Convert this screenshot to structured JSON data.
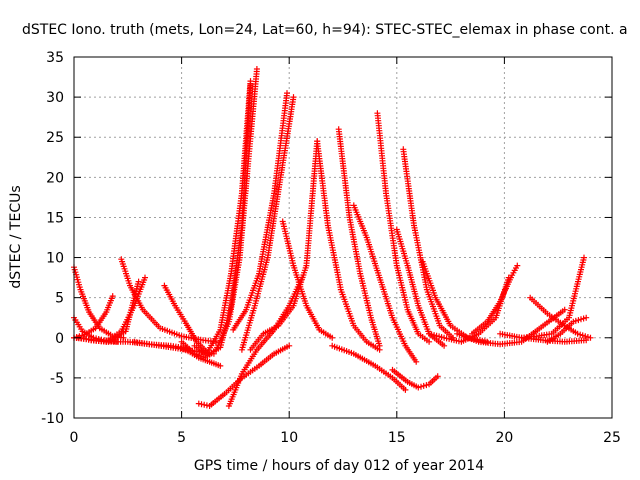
{
  "chart_data": {
    "type": "scatter",
    "title": "dSTEC Iono. truth (mets, Lon=24, Lat=60, h=94): STEC-STEC_elemax in phase cont. a",
    "xlabel": "GPS time / hours of day 012 of year 2014",
    "ylabel": "dSTEC  / TECUs",
    "xlim": [
      0,
      25
    ],
    "ylim": [
      -10,
      35
    ],
    "xticks": [
      "0",
      "5",
      "10",
      "15",
      "20",
      "25"
    ],
    "yticks": [
      "-10",
      "-5",
      "0",
      "5",
      "10",
      "15",
      "20",
      "25",
      "30",
      "35"
    ],
    "grid": true,
    "marker": "+",
    "color": "#ff0000",
    "series": [
      {
        "x": [
          0.0,
          0.3,
          0.7,
          1.2,
          1.8,
          2.3
        ],
        "y": [
          8.8,
          6.0,
          3.2,
          1.2,
          0.2,
          0.0
        ]
      },
      {
        "x": [
          0.0,
          0.4,
          0.9,
          1.4,
          2.0
        ],
        "y": [
          2.5,
          0.8,
          0.0,
          -0.3,
          -0.5
        ]
      },
      {
        "x": [
          0.0,
          0.5,
          1.0,
          1.5,
          1.8
        ],
        "y": [
          0.0,
          0.4,
          1.2,
          3.2,
          5.2
        ]
      },
      {
        "x": [
          0.2,
          0.8,
          1.5,
          2.5,
          3.5,
          4.5,
          5.2
        ],
        "y": [
          0.0,
          -0.3,
          -0.5,
          -0.5,
          -0.8,
          -1.0,
          -1.3
        ]
      },
      {
        "x": [
          0.0,
          0.8,
          1.6,
          2.4,
          3.0
        ],
        "y": [
          0.0,
          -0.2,
          -0.5,
          0.8,
          7.0
        ]
      },
      {
        "x": [
          2.2,
          2.6,
          3.2,
          4.0,
          5.0,
          6.0,
          6.6
        ],
        "y": [
          9.8,
          6.5,
          3.5,
          1.2,
          0.2,
          -0.3,
          -0.5
        ]
      },
      {
        "x": [
          0.8,
          1.5,
          2.2,
          2.8,
          3.3
        ],
        "y": [
          -0.3,
          -0.5,
          0.8,
          4.0,
          7.5
        ]
      },
      {
        "x": [
          2.8,
          3.5,
          4.5,
          5.5,
          6.5
        ],
        "y": [
          -0.5,
          -0.8,
          -1.2,
          -1.6,
          -2.0
        ]
      },
      {
        "x": [
          4.2,
          4.7,
          5.2,
          5.7,
          6.2
        ],
        "y": [
          6.5,
          4.0,
          1.8,
          -0.5,
          -1.8
        ]
      },
      {
        "x": [
          5.0,
          5.4,
          5.8,
          6.3,
          6.8
        ],
        "y": [
          -1.3,
          -1.8,
          -2.5,
          -3.0,
          -3.5
        ]
      },
      {
        "x": [
          5.0,
          5.6,
          6.1,
          6.6,
          7.2,
          7.7,
          8.1,
          8.5
        ],
        "y": [
          -0.5,
          -2.0,
          -2.5,
          -1.5,
          2.0,
          10.0,
          22.0,
          33.5
        ]
      },
      {
        "x": [
          5.6,
          6.2,
          6.8,
          7.3,
          7.8,
          8.2
        ],
        "y": [
          -1.0,
          -2.2,
          -1.2,
          4.0,
          14.0,
          31.5
        ]
      },
      {
        "x": [
          6.2,
          6.8,
          7.3,
          7.8,
          8.2
        ],
        "y": [
          -1.8,
          1.0,
          8.0,
          18.0,
          32.0
        ]
      },
      {
        "x": [
          5.8,
          6.3,
          7.0,
          7.8,
          8.6,
          9.3,
          10.0
        ],
        "y": [
          -8.2,
          -8.5,
          -7.0,
          -5.0,
          -3.5,
          -2.0,
          -1.0
        ]
      },
      {
        "x": [
          7.2,
          7.8,
          8.5,
          9.3,
          10.0,
          10.6
        ],
        "y": [
          -8.5,
          -4.5,
          -1.5,
          1.0,
          4.0,
          7.5
        ]
      },
      {
        "x": [
          7.4,
          8.0,
          8.6,
          9.3,
          9.9
        ],
        "y": [
          1.0,
          3.5,
          8.0,
          18.0,
          30.5
        ]
      },
      {
        "x": [
          7.8,
          8.4,
          9.0,
          9.6,
          10.2
        ],
        "y": [
          -1.5,
          4.0,
          10.0,
          20.0,
          30.0
        ]
      },
      {
        "x": [
          8.2,
          8.8,
          9.5,
          10.2,
          10.8,
          11.3
        ],
        "y": [
          -1.5,
          0.5,
          1.5,
          4.0,
          9.0,
          24.5
        ]
      },
      {
        "x": [
          9.7,
          10.2,
          10.8,
          11.4,
          12.0
        ],
        "y": [
          14.5,
          9.0,
          4.0,
          1.0,
          0.0
        ]
      },
      {
        "x": [
          11.3,
          11.8,
          12.4,
          13.0,
          13.6,
          14.2
        ],
        "y": [
          24.5,
          14.0,
          6.0,
          1.5,
          -0.5,
          -1.5
        ]
      },
      {
        "x": [
          12.3,
          12.8,
          13.3,
          13.8,
          14.2
        ],
        "y": [
          26.0,
          15.0,
          8.0,
          2.5,
          -1.0
        ]
      },
      {
        "x": [
          13.0,
          13.6,
          14.2,
          14.8,
          15.4,
          15.9
        ],
        "y": [
          16.5,
          12.5,
          7.5,
          2.5,
          -1.0,
          -3.0
        ]
      },
      {
        "x": [
          12.0,
          13.0,
          14.0,
          14.8,
          15.4
        ],
        "y": [
          -1.0,
          -2.0,
          -3.5,
          -5.0,
          -6.5
        ]
      },
      {
        "x": [
          14.1,
          14.5,
          15.0,
          15.5,
          16.0,
          16.5
        ],
        "y": [
          28.0,
          18.0,
          9.0,
          3.5,
          0.5,
          -0.5
        ]
      },
      {
        "x": [
          15.0,
          15.5,
          16.0,
          16.5,
          17.2
        ],
        "y": [
          13.5,
          9.0,
          4.0,
          0.5,
          -1.0
        ]
      },
      {
        "x": [
          15.3,
          15.8,
          16.4,
          17.0,
          17.6
        ],
        "y": [
          23.5,
          14.0,
          6.0,
          1.5,
          0.0
        ]
      },
      {
        "x": [
          14.8,
          15.5,
          16.0,
          16.5,
          16.9
        ],
        "y": [
          -4.0,
          -5.5,
          -6.2,
          -5.8,
          -4.8
        ]
      },
      {
        "x": [
          16.2,
          16.8,
          17.5,
          18.3,
          19.2
        ],
        "y": [
          9.5,
          5.0,
          1.5,
          0.0,
          -0.5
        ]
      },
      {
        "x": [
          16.5,
          17.2,
          18.0,
          18.8,
          19.6,
          20.2
        ],
        "y": [
          0.5,
          0.0,
          -0.5,
          0.5,
          2.5,
          7.5
        ]
      },
      {
        "x": [
          17.8,
          18.8,
          19.8,
          20.8,
          21.8,
          22.8
        ],
        "y": [
          0.5,
          -0.5,
          -0.8,
          -0.5,
          1.5,
          3.5
        ]
      },
      {
        "x": [
          18.5,
          19.2,
          19.8,
          20.3,
          20.6
        ],
        "y": [
          0.5,
          2.0,
          4.5,
          7.5,
          9.0
        ]
      },
      {
        "x": [
          20.8,
          21.5,
          22.2,
          23.0,
          23.7
        ],
        "y": [
          0.0,
          0.2,
          0.5,
          2.5,
          10.0
        ]
      },
      {
        "x": [
          21.2,
          22.0,
          22.8,
          23.4,
          24.0
        ],
        "y": [
          5.0,
          3.0,
          1.5,
          0.5,
          0.0
        ]
      },
      {
        "x": [
          22.0,
          22.6,
          23.2,
          23.8
        ],
        "y": [
          -0.5,
          0.5,
          2.0,
          2.5
        ]
      },
      {
        "x": [
          19.8,
          20.8,
          21.8,
          22.8,
          23.8
        ],
        "y": [
          0.5,
          0.0,
          -0.3,
          -0.5,
          -0.3
        ]
      }
    ]
  }
}
